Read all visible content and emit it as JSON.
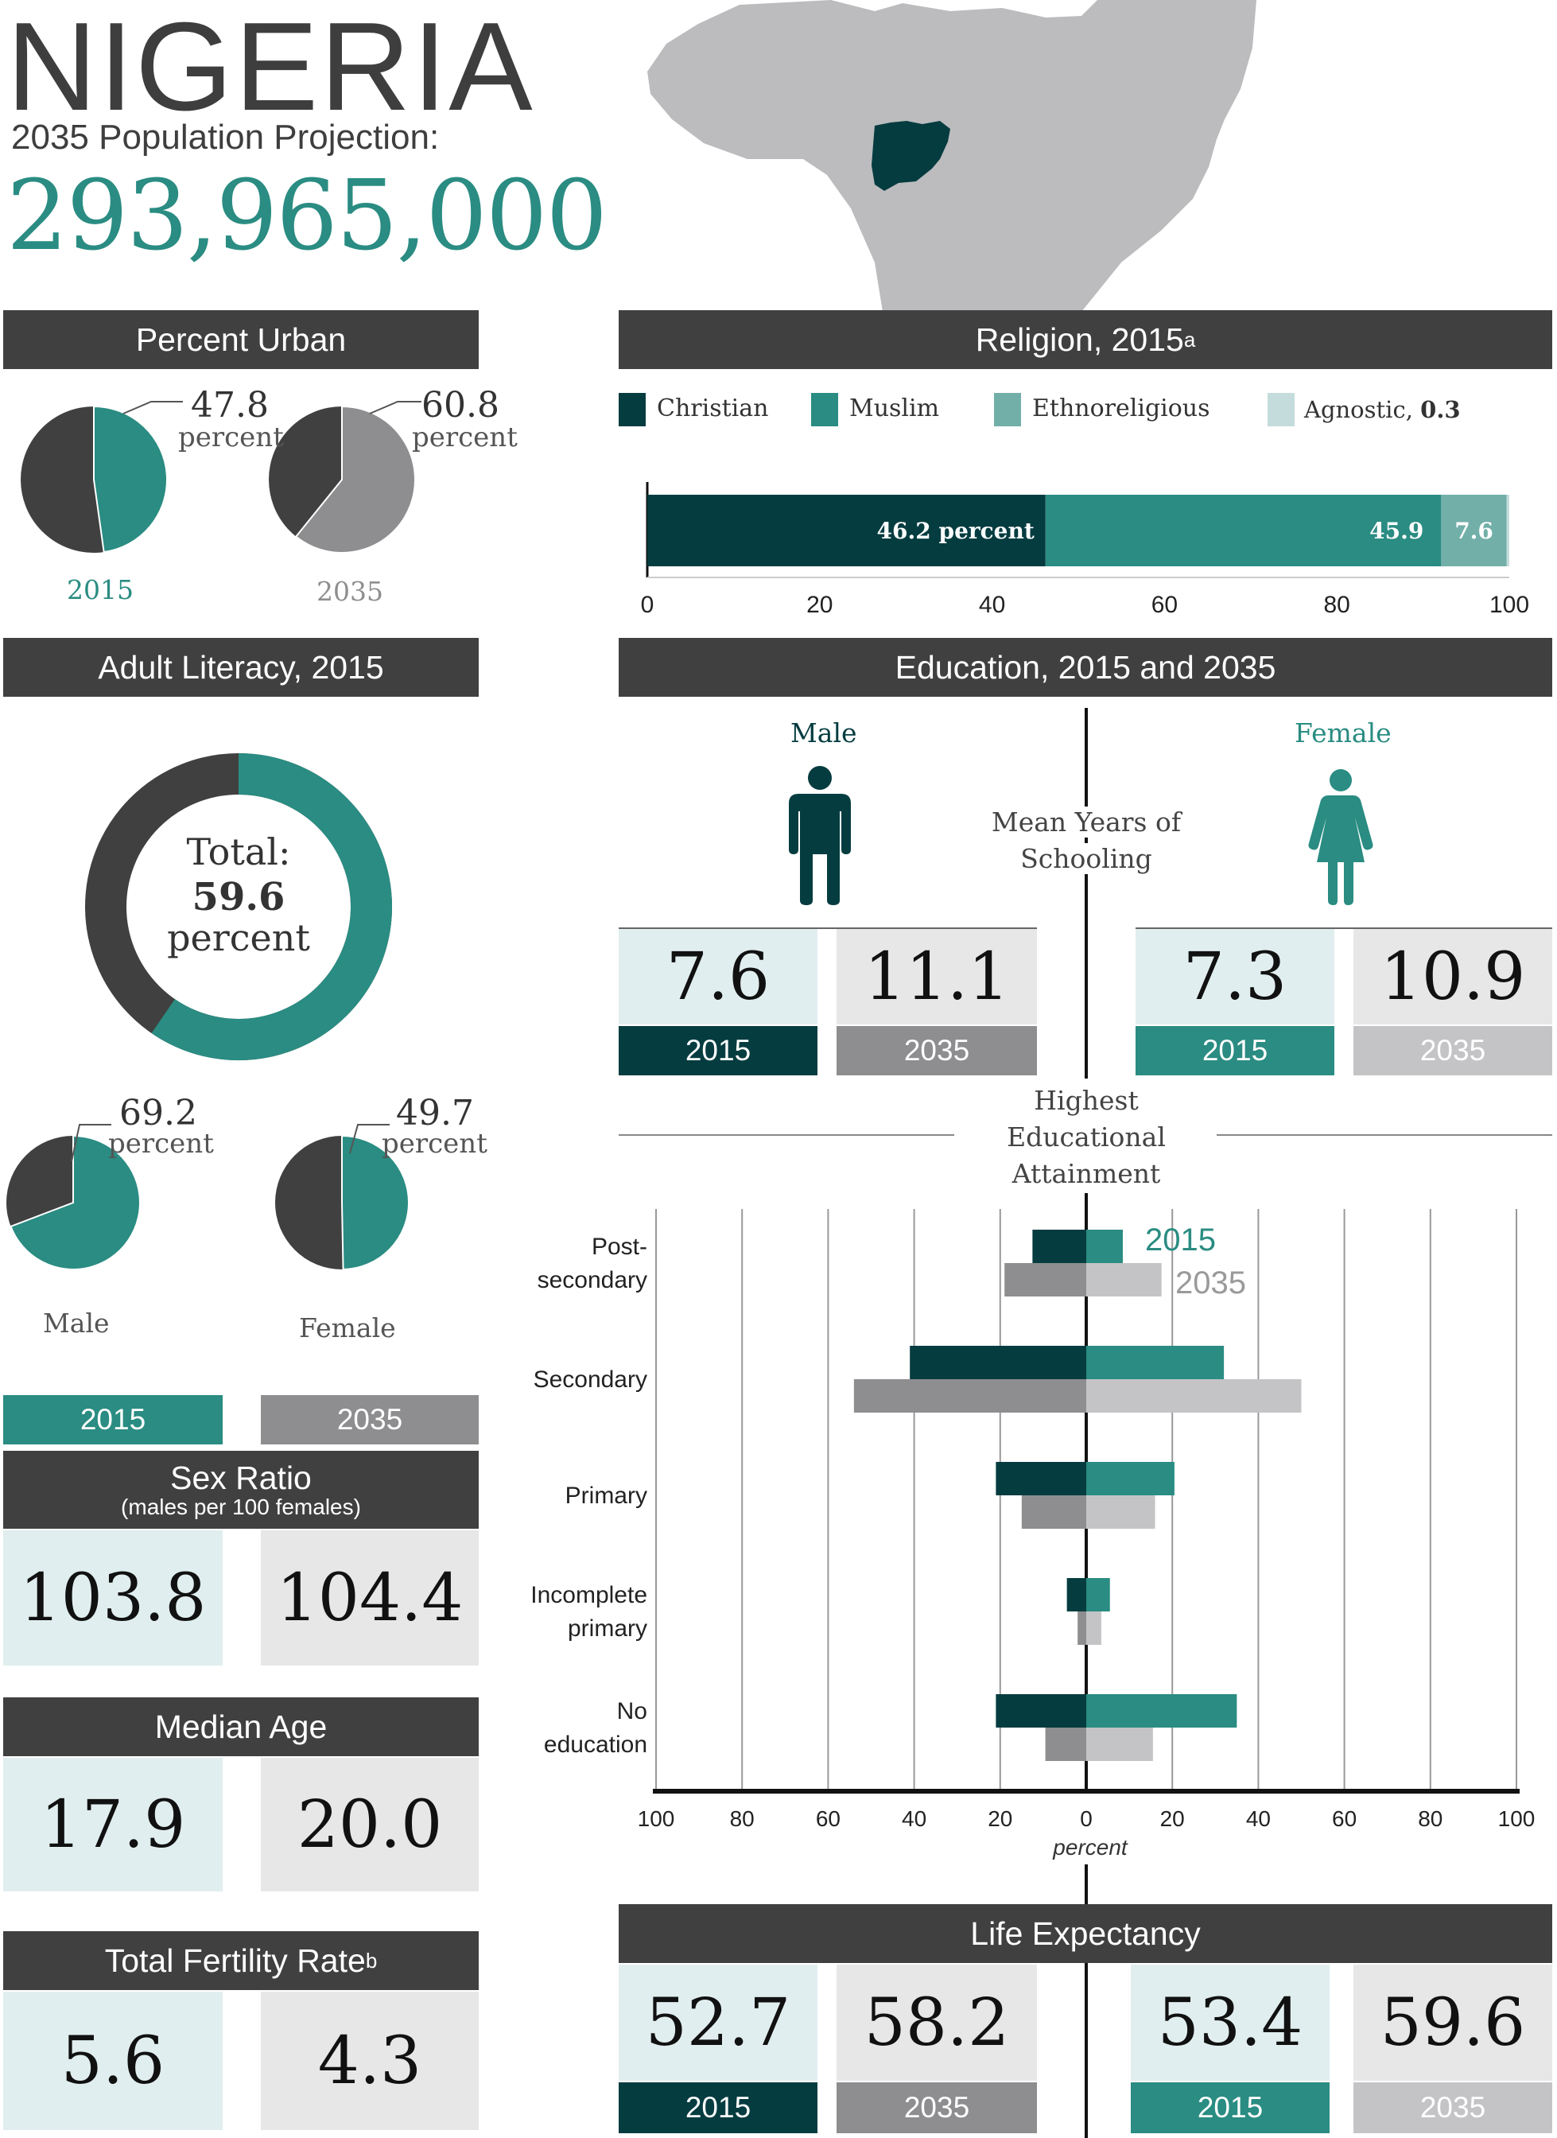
{
  "country": "NIGERIA",
  "projection_label": "2035 Population Projection:",
  "projection_value": "293,965,000",
  "colors": {
    "dark": "#404040",
    "teal": "#2a8c82",
    "darkteal": "#053c40",
    "ethno": "#72afa9",
    "agnostic": "#c5dcdc",
    "gray": "#8e8e90",
    "lightgray": "#c4c4c6",
    "panel2015": "#e1eeef",
    "panel2035": "#e7e7e8",
    "map": "#bcbcbe"
  },
  "urban": {
    "title": "Percent Urban",
    "items": [
      {
        "value": "47.8",
        "unit": "percent",
        "year": "2015",
        "fraction": 0.478
      },
      {
        "value": "60.8",
        "unit": "percent",
        "year": "2035",
        "fraction": 0.608
      }
    ]
  },
  "religion": {
    "title": "Religion, 2015",
    "title_sup": "a",
    "legend": [
      {
        "label": "Christian",
        "color": "#053c40"
      },
      {
        "label": "Muslim",
        "color": "#2a8c82"
      },
      {
        "label": "Ethnoreligious",
        "color": "#72afa9"
      },
      {
        "label": "Agnostic,",
        "bold": "0.3",
        "color": "#c5dcdc"
      }
    ],
    "bar_labels": [
      "46.2 percent",
      "45.9",
      "7.6"
    ],
    "ticks": [
      "0",
      "20",
      "40",
      "60",
      "80",
      "100"
    ]
  },
  "literacy": {
    "title": "Adult Literacy, 2015",
    "total_label": "Total:",
    "total_value": "59.6",
    "total_unit": "percent",
    "total_fraction": 0.596,
    "male": {
      "value": "69.2",
      "unit": "percent",
      "label": "Male",
      "fraction": 0.692
    },
    "female": {
      "value": "49.7",
      "unit": "percent",
      "label": "Female",
      "fraction": 0.497
    }
  },
  "years": {
    "y2015": "2015",
    "y2035": "2035"
  },
  "sex_ratio": {
    "title": "Sex Ratio",
    "subtitle": "(males per 100 females)",
    "v2015": "103.8",
    "v2035": "104.4"
  },
  "median_age": {
    "title": "Median Age",
    "v2015": "17.9",
    "v2035": "20.0"
  },
  "fertility": {
    "title": "Total Fertility Rate",
    "title_sup": "b",
    "v2015": "5.6",
    "v2035": "4.3"
  },
  "education": {
    "title": "Education, 2015 and 2035",
    "male_label": "Male",
    "female_label": "Female",
    "mys_label_1": "Mean Years of",
    "mys_label_2": "Schooling",
    "male_mys": {
      "v2015": "7.6",
      "v2035": "11.1"
    },
    "female_mys": {
      "v2015": "7.3",
      "v2035": "10.9"
    },
    "hea_label_1": "Highest",
    "hea_label_2": "Educational",
    "hea_label_3": "Attainment",
    "category_labels": [
      [
        "Post-",
        "secondary"
      ],
      [
        "Secondary"
      ],
      [
        "Primary"
      ],
      [
        "Incomplete",
        "primary"
      ],
      [
        "No",
        "education"
      ]
    ],
    "legend_2015": "2015",
    "legend_2035": "2035",
    "xlabel": "percent",
    "ticks": [
      "100",
      "80",
      "60",
      "40",
      "20",
      "0",
      "20",
      "40",
      "60",
      "80",
      "100"
    ]
  },
  "life_expectancy": {
    "title": "Life Expectancy",
    "male": {
      "v2015": "52.7",
      "v2035": "58.2"
    },
    "female": {
      "v2015": "53.4",
      "v2035": "59.6"
    }
  },
  "chart_data": [
    {
      "type": "pie",
      "title": "Percent Urban",
      "categories": [
        "2015",
        "2035"
      ],
      "values": [
        47.8,
        60.8
      ]
    },
    {
      "type": "bar",
      "title": "Religion, 2015",
      "categories": [
        "Christian",
        "Muslim",
        "Ethnoreligious",
        "Agnostic"
      ],
      "values": [
        46.2,
        45.9,
        7.6,
        0.3
      ],
      "xlim": [
        0,
        100
      ]
    },
    {
      "type": "pie",
      "title": "Adult Literacy, 2015",
      "categories": [
        "Total",
        "Male",
        "Female"
      ],
      "values": [
        59.6,
        69.2,
        49.7
      ]
    },
    {
      "type": "bar",
      "title": "Highest Educational Attainment",
      "xlabel": "percent",
      "xlim": [
        -100,
        100
      ],
      "categories": [
        "Post-secondary",
        "Secondary",
        "Primary",
        "Incomplete primary",
        "No education"
      ],
      "series": [
        {
          "name": "Male 2015",
          "values": [
            12.5,
            41,
            21,
            4.5,
            21
          ]
        },
        {
          "name": "Male 2035",
          "values": [
            19,
            54,
            15,
            2,
            9.5
          ]
        },
        {
          "name": "Female 2015",
          "values": [
            8.5,
            32,
            20.5,
            5.5,
            35
          ]
        },
        {
          "name": "Female 2035",
          "values": [
            17.5,
            50,
            16,
            3.5,
            15.5
          ]
        }
      ]
    }
  ]
}
